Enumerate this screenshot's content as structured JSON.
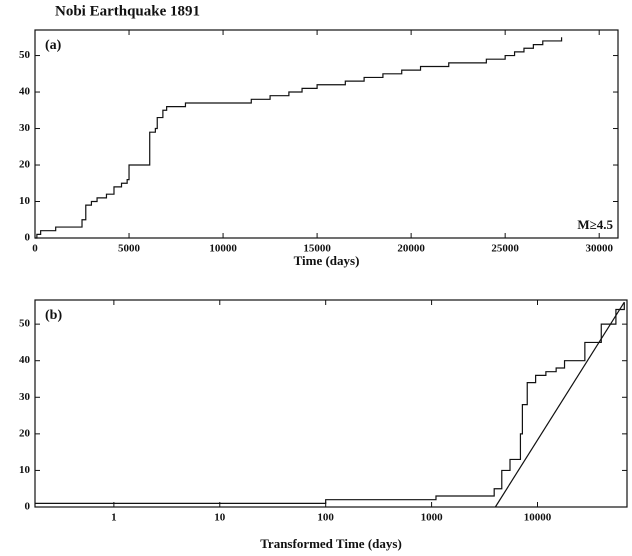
{
  "chart_data": [
    {
      "type": "line",
      "title": "Nobi Earthquake 1891",
      "panel_label": "(a)",
      "annotation": "M≥4.5",
      "xlabel": "Time (days)",
      "step": true,
      "log_x": false,
      "xlim": [
        0,
        31000
      ],
      "ylim": [
        0,
        57
      ],
      "xticks": [
        0,
        5000,
        10000,
        15000,
        20000,
        25000,
        30000
      ],
      "yticks": [
        0,
        10,
        20,
        30,
        40,
        50
      ],
      "series": [
        {
          "color": "#111111",
          "step": true,
          "x": [
            0,
            100,
            300,
            1100,
            2500,
            2700,
            3000,
            3300,
            3800,
            4200,
            4600,
            4900,
            5000,
            6100,
            6400,
            6500,
            6800,
            7000,
            8000,
            11500,
            12500,
            13500,
            14200,
            15000,
            16500,
            17500,
            18500,
            19500,
            20500,
            22000,
            24000,
            25000,
            25500,
            26000,
            26500,
            27000,
            28000
          ],
          "values": [
            0,
            1,
            2,
            3,
            5,
            9,
            10,
            11,
            12,
            14,
            15,
            16,
            20,
            29,
            30,
            33,
            35,
            36,
            37,
            38,
            39,
            40,
            41,
            42,
            43,
            44,
            45,
            46,
            47,
            48,
            49,
            50,
            51,
            52,
            53,
            54,
            55
          ]
        }
      ]
    },
    {
      "type": "line",
      "panel_label": "(b)",
      "xlabel": "Transformed Time (days)",
      "log_x": true,
      "xlim": [
        0.18,
        70000
      ],
      "ylim": [
        0,
        56.6
      ],
      "xticks": [
        1,
        10,
        100,
        1000,
        10000
      ],
      "yticks": [
        0,
        10,
        20,
        30,
        40,
        50
      ],
      "series": [
        {
          "color": "#111111",
          "step": true,
          "x": [
            0.18,
            100,
            1100,
            3900,
            4600,
            5500,
            6900,
            7200,
            8000,
            9600,
            12000,
            15000,
            18000,
            28000,
            40000,
            55000,
            66000
          ],
          "values": [
            1,
            2,
            3,
            5,
            10,
            13,
            20,
            28,
            34,
            36,
            37,
            38,
            40,
            45,
            50,
            54,
            56
          ]
        },
        {
          "color": "#111111",
          "step": false,
          "x": [
            4000,
            66000
          ],
          "values": [
            0,
            56
          ]
        }
      ]
    }
  ]
}
